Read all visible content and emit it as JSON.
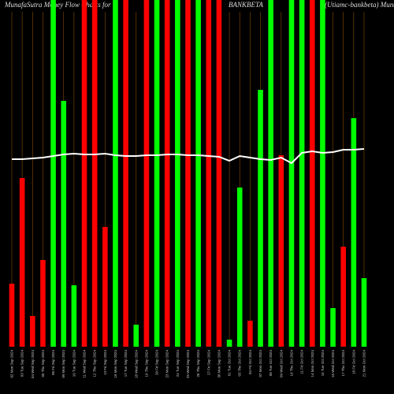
{
  "chart_data": {
    "type": "bar",
    "title_left": "MunafaSutra Money Flow Charts for",
    "title": "BANKBETA",
    "title_right": "(Utiamc-bankbeta) MunafaSutra.com",
    "categories": [
      "02 Mon Sep 2024",
      "03 Tue Sep 2024",
      "04 Wed Sep 2024",
      "05 Thu Sep 2024",
      "06 Fri Sep 2024",
      "09 Mon Sep 2024",
      "10 Tue Sep 2024",
      "11 Wed Sep 2024",
      "12 Thu Sep 2024",
      "13 Fri Sep 2024",
      "16 Mon Sep 2024",
      "17 Tue Sep 2024",
      "18 Wed Sep 2024",
      "19 Thu Sep 2024",
      "20 Fri Sep 2024",
      "23 Mon Sep 2024",
      "24 Tue Sep 2024",
      "25 Wed Sep 2024",
      "26 Thu Sep 2024",
      "27 Fri Sep 2024",
      "30 Mon Sep 2024",
      "01 Tue Oct 2024",
      "03 Thu Oct 2024",
      "04 Fri Oct 2024",
      "07 Mon Oct 2024",
      "08 Tue Oct 2024",
      "09 Wed Oct 2024",
      "10 Thu Oct 2024",
      "11 Fri Oct 2024",
      "14 Mon Oct 2024",
      "15 Tue Oct 2024",
      "16 Wed Oct 2024",
      "17 Thu Oct 2024",
      "18 Fri Oct 2024",
      "21 Mon Oct 2024"
    ],
    "values": [
      80,
      214,
      39,
      110,
      440,
      312,
      78,
      440,
      440,
      152,
      440,
      440,
      28,
      440,
      440,
      440,
      440,
      440,
      440,
      440,
      440,
      9,
      202,
      33,
      326,
      440,
      243,
      440,
      440,
      440,
      440,
      49,
      127,
      290,
      87
    ],
    "colors": [
      "#f00",
      "#f00",
      "#f00",
      "#f00",
      "#0f0",
      "#0f0",
      "#0f0",
      "#f00",
      "#f00",
      "#f00",
      "#0f0",
      "#f00",
      "#0f0",
      "#f00",
      "#0f0",
      "#f00",
      "#0f0",
      "#f00",
      "#0f0",
      "#f00",
      "#f00",
      "#0f0",
      "#0f0",
      "#f00",
      "#0f0",
      "#0f0",
      "#f00",
      "#0f0",
      "#0f0",
      "#f00",
      "#0f0",
      "#0f0",
      "#f00",
      "#0f0",
      "#0f0"
    ],
    "line_values": [
      238,
      238,
      239,
      240,
      242,
      244,
      245,
      244,
      244,
      245,
      243,
      242,
      242,
      243,
      243,
      244,
      244,
      243,
      243,
      242,
      241,
      236,
      242,
      240,
      238,
      237,
      240,
      233,
      246,
      248,
      246,
      247,
      250,
      250,
      251
    ],
    "line_color": "#fff",
    "grid_color": "#8a4b00",
    "ylim": [
      0,
      440
    ]
  }
}
